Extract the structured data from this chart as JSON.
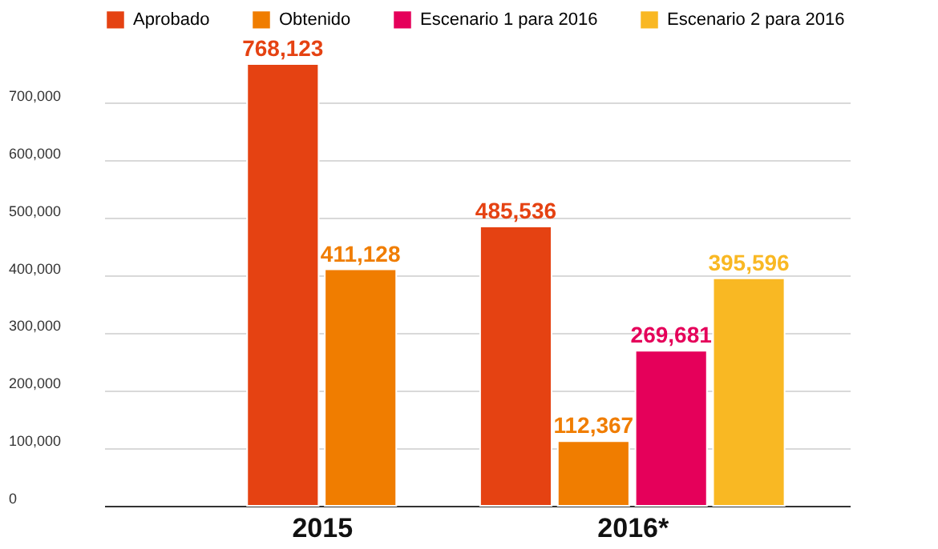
{
  "chart_data": {
    "type": "bar",
    "categories": [
      "2015",
      "2016*"
    ],
    "series": [
      {
        "name": "Aprobado",
        "color": "#e54212",
        "values": [
          768123,
          485536
        ],
        "value_labels": [
          "768,123",
          "485,536"
        ]
      },
      {
        "name": "Obtenido",
        "color": "#f07d00",
        "values": [
          411128,
          112367
        ],
        "value_labels": [
          "411,128",
          "112,367"
        ]
      },
      {
        "name": "Escenario 1 para 2016",
        "color": "#e5005a",
        "values": [
          null,
          269681
        ],
        "value_labels": [
          null,
          "269,681"
        ]
      },
      {
        "name": "Escenario 2 para 2016",
        "color": "#f9b823",
        "values": [
          null,
          395596
        ],
        "value_labels": [
          null,
          "395,596"
        ]
      }
    ],
    "ylim": [
      0,
      768123
    ],
    "yticks": [
      0,
      {
        "value": 100000,
        "label": "100,000"
      },
      {
        "value": 200000,
        "label": "200,000"
      },
      {
        "value": 300000,
        "label": "300,000"
      },
      {
        "value": 400000,
        "label": "400,000"
      },
      {
        "value": 500000,
        "label": "500,000"
      },
      {
        "value": 600000,
        "label": "600,000"
      },
      {
        "value": 700000,
        "label": "700,000"
      }
    ],
    "grid": "y",
    "legend": "top left"
  }
}
